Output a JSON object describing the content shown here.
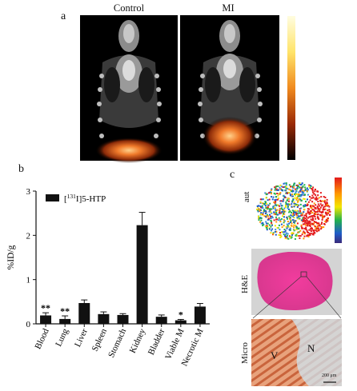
{
  "panel_a": {
    "letter": "a",
    "left_title": "Control",
    "right_title": "MI"
  },
  "panel_b": {
    "letter": "b"
  },
  "panel_c": {
    "letter": "c",
    "row_labels": [
      "aut",
      "H&E",
      "Micro"
    ],
    "micro_region_labels": [
      "V",
      "N"
    ],
    "scale_bar_label": "200 μm"
  },
  "chart_data": {
    "type": "bar",
    "title": "",
    "ylabel": "%ID/g",
    "xlabel": "",
    "ylim": [
      0,
      3
    ],
    "yticks": [
      "0",
      "1",
      "2",
      "3"
    ],
    "legend": {
      "text": "[131I]5-HTP",
      "position": "top-left"
    },
    "grid": false,
    "categories": [
      "Blood",
      "Lung",
      "Liver",
      "Spleen",
      "Stomach",
      "Kidney",
      "Bladder",
      "Viable M",
      "Necrotic M"
    ],
    "values": [
      0.19,
      0.11,
      0.47,
      0.22,
      0.2,
      2.23,
      0.16,
      0.08,
      0.39
    ],
    "errors": [
      0.06,
      0.07,
      0.07,
      0.05,
      0.03,
      0.29,
      0.04,
      0.02,
      0.07
    ],
    "significance": [
      "**",
      "**",
      "",
      "",
      "",
      "",
      "",
      "*",
      ""
    ],
    "bar_color": "#111111"
  }
}
